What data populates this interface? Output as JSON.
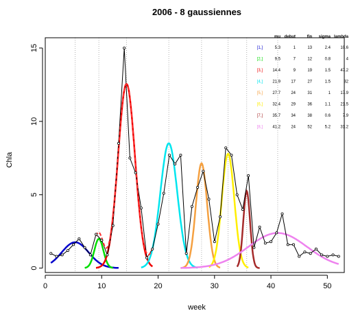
{
  "chart_data": {
    "type": "line",
    "title": "2006  -  8  gaussiennes",
    "xlabel": "week",
    "ylabel": "Chla",
    "xlim": [
      0,
      53
    ],
    "ylim": [
      -0.3,
      15.7
    ],
    "x_ticks": [
      0,
      10,
      20,
      30,
      40,
      50
    ],
    "y_ticks": [
      0,
      5,
      10,
      15
    ],
    "grid": "vertical dotted lines at component means",
    "legend": "top-right table",
    "observed": {
      "x": [
        1,
        2,
        3,
        4,
        5,
        6,
        7,
        8,
        9,
        10,
        11,
        12,
        13,
        14,
        15,
        16,
        17,
        18,
        19,
        20,
        21,
        22,
        23,
        24,
        25,
        26,
        27,
        28,
        29,
        30,
        31,
        32,
        33,
        34,
        35,
        36,
        37,
        38,
        39,
        40,
        41,
        42,
        43,
        44,
        45,
        46,
        47,
        48,
        49,
        50,
        51,
        52
      ],
      "y": [
        1.0,
        0.8,
        0.9,
        1.2,
        1.6,
        2.0,
        1.4,
        0.9,
        2.3,
        1.9,
        0.9,
        2.9,
        8.5,
        15.0,
        7.5,
        6.5,
        4.1,
        0.7,
        1.3,
        3.0,
        5.1,
        7.7,
        7.1,
        7.7,
        1.0,
        4.2,
        5.5,
        6.6,
        4.7,
        1.8,
        3.5,
        8.2,
        7.7,
        5.0,
        4.0,
        6.3,
        1.4,
        2.8,
        1.7,
        1.8,
        2.4,
        3.7,
        1.6,
        1.6,
        0.8,
        1.1,
        1.0,
        1.3,
        0.9,
        0.8,
        0.9,
        0.8
      ]
    },
    "table_headers": [
      "",
      "mu",
      "debut",
      "fin",
      "sigma",
      "lambda"
    ],
    "components": [
      {
        "label": "[1,]",
        "mu": 5.3,
        "debut": 1,
        "fin": 13,
        "sigma": 2.4,
        "lambda": 10.6,
        "color": "#0000cc",
        "mu_label": "5.3",
        "debut_label": "1",
        "fin_label": "13",
        "sigma_label": "2.4",
        "lambda_label": "10.6"
      },
      {
        "label": "[2,]",
        "mu": 9.5,
        "debut": 7,
        "fin": 12,
        "sigma": 0.8,
        "lambda": 4,
        "color": "#00dd00",
        "mu_label": "9.5",
        "debut_label": "7",
        "fin_label": "12",
        "sigma_label": "0.8",
        "lambda_label": "4"
      },
      {
        "label": "[3,]",
        "mu": 14.4,
        "debut": 9,
        "fin": 19,
        "sigma": 1.5,
        "lambda": 47.2,
        "color": "#ee0000",
        "mu_label": "14.4",
        "debut_label": "9",
        "fin_label": "19",
        "sigma_label": "1.5",
        "lambda_label": "47.2"
      },
      {
        "label": "[4,]",
        "mu": 21.9,
        "debut": 17,
        "fin": 27,
        "sigma": 1.5,
        "lambda": 32,
        "color": "#00e5ee",
        "mu_label": "21.9",
        "debut_label": "17",
        "fin_label": "27",
        "sigma_label": "1.5",
        "lambda_label": "32"
      },
      {
        "label": "[5,]",
        "mu": 27.7,
        "debut": 24,
        "fin": 31,
        "sigma": 1,
        "lambda": 17.9,
        "color": "#f5a040",
        "mu_label": "27.7",
        "debut_label": "24",
        "fin_label": "31",
        "sigma_label": "1",
        "lambda_label": "17.9"
      },
      {
        "label": "[6,]",
        "mu": 32.4,
        "debut": 29,
        "fin": 36,
        "sigma": 1.1,
        "lambda": 21.5,
        "color": "#ffee00",
        "mu_label": "32.4",
        "debut_label": "29",
        "fin_label": "36",
        "sigma_label": "1.1",
        "lambda_label": "21.5"
      },
      {
        "label": "[7,]",
        "mu": 35.7,
        "debut": 34,
        "fin": 38,
        "sigma": 0.6,
        "lambda": 7.9,
        "color": "#a52a2a",
        "mu_label": "35.7",
        "debut_label": "34",
        "fin_label": "38",
        "sigma_label": "0.6",
        "lambda_label": "7.9"
      },
      {
        "label": "[8,]",
        "mu": 41.2,
        "debut": 24,
        "fin": 52,
        "sigma": 5.2,
        "lambda": 31.2,
        "color": "#ee82ee",
        "mu_label": "41.2",
        "debut_label": "24",
        "fin_label": "52",
        "sigma_label": "5.2",
        "lambda_label": "31.2"
      }
    ],
    "mixture_color": "#ff3030",
    "observed_color": "#000000"
  }
}
